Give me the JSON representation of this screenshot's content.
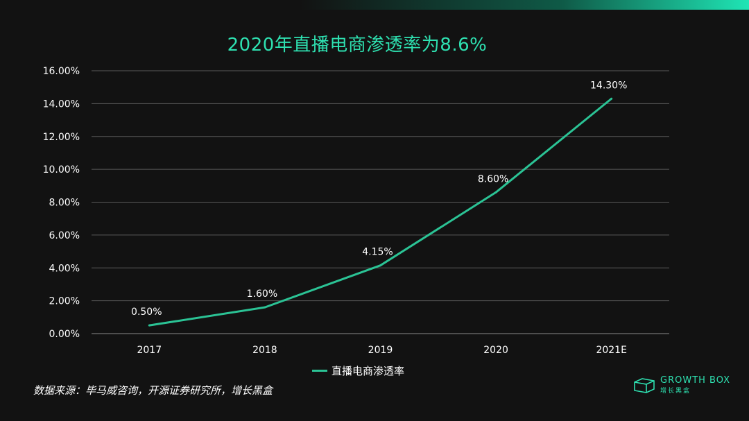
{
  "title": "2020年直播电商渗透率为8.6%",
  "source": "数据来源：毕马威咨询，开源证券研究所，增长黑盒",
  "brand": {
    "name": "GROWTH BOX",
    "sub": "增长黑盒"
  },
  "colors": {
    "line": "#2bc395",
    "title": "#2ee0b0",
    "grid": "#5a5a5a",
    "text": "#ffffff",
    "background": "#121212"
  },
  "chart_data": {
    "type": "line",
    "categories": [
      "2017",
      "2018",
      "2019",
      "2020",
      "2021E"
    ],
    "series": [
      {
        "name": "直播电商渗透率",
        "values": [
          0.5,
          1.6,
          4.15,
          8.6,
          14.3
        ]
      }
    ],
    "data_labels": [
      "0.50%",
      "1.60%",
      "4.15%",
      "8.60%",
      "14.30%"
    ],
    "y_ticks": [
      "0.00%",
      "2.00%",
      "4.00%",
      "6.00%",
      "8.00%",
      "10.00%",
      "12.00%",
      "14.00%",
      "16.00%"
    ],
    "ylim": [
      0,
      16
    ],
    "grid": true,
    "legend": "bottom"
  }
}
